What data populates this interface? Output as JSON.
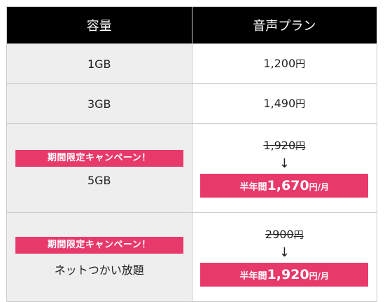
{
  "header": {
    "capacity": "容量",
    "voice_plan": "音声プラン"
  },
  "rows": [
    {
      "capacity": "1GB",
      "price": "1,200",
      "yen": "円"
    },
    {
      "capacity": "3GB",
      "price": "1,490",
      "yen": "円"
    },
    {
      "badge": "期間限定キャンペーン！",
      "capacity": "5GB",
      "old_price": "1,920",
      "old_yen": "円",
      "arrow": "↓",
      "new_label": "半年間",
      "new_price": "1,670",
      "new_unit": "円/月"
    },
    {
      "badge": "期間限定キャンペーン！",
      "capacity": "ネットつかい放題",
      "old_price": "2900",
      "old_yen": "円",
      "arrow": "↓",
      "new_label": "半年間",
      "new_price": "1,920",
      "new_unit": "円/月"
    }
  ],
  "colors": {
    "header_bg": "#000000",
    "capacity_bg": "#eeeeee",
    "accent": "#e8396b"
  }
}
